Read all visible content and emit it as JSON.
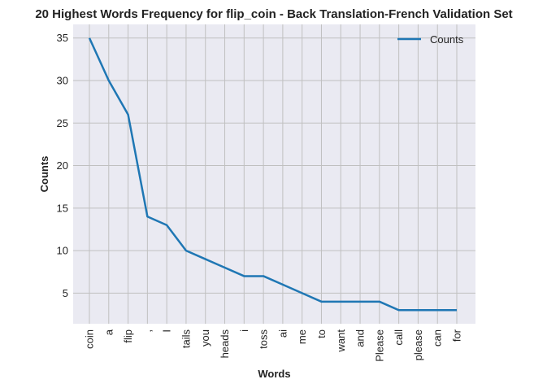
{
  "chart_data": {
    "type": "line",
    "title": "20 Highest Words Frequency for flip_coin - Back Translation-French Validation Set",
    "xlabel": "Words",
    "ylabel": "Counts",
    "categories": [
      "coin",
      "a",
      "flip",
      ",",
      "I",
      "tails",
      "you",
      "heads",
      "i",
      "toss",
      "ai",
      "me",
      "to",
      "want",
      "and",
      "Please",
      "call",
      "please",
      "can",
      "for"
    ],
    "series": [
      {
        "name": "Counts",
        "values": [
          35,
          30,
          26,
          14,
          13,
          10,
          9,
          8,
          7,
          7,
          6,
          5,
          4,
          4,
          4,
          4,
          3,
          3,
          3,
          3
        ]
      }
    ],
    "ylim": [
      1.4,
      36.6
    ],
    "yticks": [
      5,
      10,
      15,
      20,
      25,
      30,
      35
    ],
    "grid": true,
    "legend": "top-right",
    "colors": {
      "line": "#1f77b4",
      "plot_bg": "#eaeaf2",
      "grid": "#c0c0c0"
    }
  }
}
